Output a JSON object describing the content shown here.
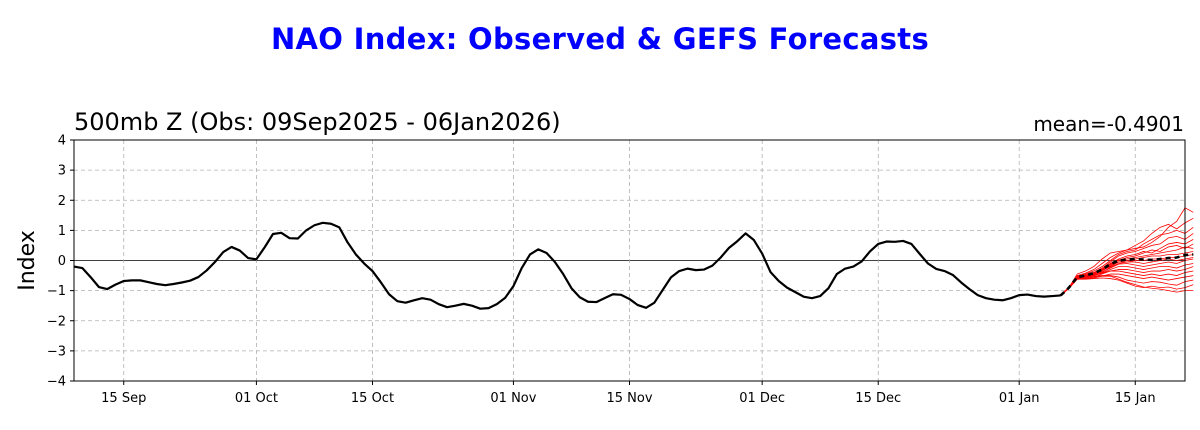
{
  "title": "NAO Index: Observed & GEFS Forecasts",
  "subtitle": "500mb Z (Obs: 09Sep2025 - 06Jan2026)",
  "mean_label": "mean=-0.4901",
  "colors": {
    "title": "#0000ff",
    "observed": "#000000",
    "ensemble": "#ff0000",
    "grid": "#b0b0b0"
  },
  "chart_data": {
    "type": "line",
    "ylabel": "Index",
    "ylim": [
      -4,
      4
    ],
    "yticks": [
      -4,
      -3,
      -2,
      -1,
      0,
      1,
      2,
      3,
      4
    ],
    "xlim": [
      "2025-09-09",
      "2026-01-21"
    ],
    "xticks": [
      {
        "date": "2025-09-15",
        "label": "15 Sep"
      },
      {
        "date": "2025-10-01",
        "label": "01 Oct"
      },
      {
        "date": "2025-10-15",
        "label": "15 Oct"
      },
      {
        "date": "2025-11-01",
        "label": "01 Nov"
      },
      {
        "date": "2025-11-15",
        "label": "15 Nov"
      },
      {
        "date": "2025-12-01",
        "label": "01 Dec"
      },
      {
        "date": "2025-12-15",
        "label": "15 Dec"
      },
      {
        "date": "2026-01-01",
        "label": "01 Jan"
      },
      {
        "date": "2026-01-15",
        "label": "15 Jan"
      }
    ],
    "grid": true,
    "zero_line": true,
    "observed": {
      "start": "2025-09-09",
      "values": [
        -0.2,
        -0.25,
        -0.55,
        -0.88,
        -0.95,
        -0.8,
        -0.68,
        -0.66,
        -0.66,
        -0.72,
        -0.78,
        -0.82,
        -0.78,
        -0.73,
        -0.67,
        -0.55,
        -0.33,
        -0.05,
        0.28,
        0.45,
        0.33,
        0.08,
        0.04,
        0.44,
        0.88,
        0.92,
        0.74,
        0.73,
        1.0,
        1.17,
        1.25,
        1.22,
        1.1,
        0.6,
        0.2,
        -0.1,
        -0.35,
        -0.72,
        -1.12,
        -1.35,
        -1.4,
        -1.32,
        -1.25,
        -1.3,
        -1.45,
        -1.55,
        -1.5,
        -1.44,
        -1.5,
        -1.6,
        -1.58,
        -1.45,
        -1.24,
        -0.85,
        -0.25,
        0.2,
        0.37,
        0.25,
        -0.05,
        -0.45,
        -0.92,
        -1.22,
        -1.37,
        -1.38,
        -1.25,
        -1.12,
        -1.14,
        -1.28,
        -1.48,
        -1.57,
        -1.4,
        -0.98,
        -0.56,
        -0.35,
        -0.27,
        -0.32,
        -0.3,
        -0.17,
        0.1,
        0.42,
        0.64,
        0.9,
        0.68,
        0.23,
        -0.38,
        -0.68,
        -0.9,
        -1.05,
        -1.2,
        -1.25,
        -1.18,
        -0.92,
        -0.45,
        -0.27,
        -0.2,
        -0.03,
        0.3,
        0.55,
        0.63,
        0.62,
        0.65,
        0.55,
        0.22,
        -0.1,
        -0.28,
        -0.35,
        -0.48,
        -0.73,
        -0.95,
        -1.15,
        -1.25,
        -1.3,
        -1.32,
        -1.25,
        -1.15,
        -1.13,
        -1.18,
        -1.2,
        -1.18,
        -1.16
      ]
    },
    "forecast": {
      "start": "2026-01-06",
      "mean": [
        -1.16,
        -0.9,
        -0.55,
        -0.5,
        -0.42,
        -0.3,
        -0.12,
        0.0,
        0.03,
        0.05,
        0.03,
        0.02,
        0.05,
        0.08,
        0.1,
        0.18,
        0.2
      ],
      "members": [
        [
          -1.16,
          -0.9,
          -0.45,
          -0.35,
          -0.2,
          0.05,
          0.25,
          0.3,
          0.35,
          0.4,
          0.45,
          0.6,
          0.8,
          1.1,
          1.3,
          1.75,
          1.6
        ],
        [
          -1.16,
          -0.9,
          -0.5,
          -0.42,
          -0.3,
          -0.1,
          0.1,
          0.25,
          0.35,
          0.5,
          0.65,
          0.9,
          1.1,
          1.2,
          1.05,
          1.25,
          1.4
        ],
        [
          -1.16,
          -0.88,
          -0.52,
          -0.45,
          -0.35,
          -0.2,
          0.0,
          0.2,
          0.3,
          0.35,
          0.55,
          0.7,
          0.85,
          0.9,
          1.0,
          0.9,
          1.1
        ],
        [
          -1.16,
          -0.9,
          -0.55,
          -0.48,
          -0.4,
          -0.25,
          -0.05,
          0.15,
          0.25,
          0.3,
          0.4,
          0.5,
          0.55,
          0.75,
          0.8,
          0.7,
          0.9
        ],
        [
          -1.16,
          -0.92,
          -0.58,
          -0.5,
          -0.4,
          -0.3,
          -0.1,
          0.05,
          0.15,
          0.2,
          0.3,
          0.25,
          0.4,
          0.55,
          0.6,
          0.55,
          0.7
        ],
        [
          -1.16,
          -0.9,
          -0.6,
          -0.55,
          -0.45,
          -0.3,
          -0.15,
          0.0,
          0.1,
          0.15,
          0.25,
          0.35,
          0.3,
          0.45,
          0.5,
          0.4,
          0.55
        ],
        [
          -1.16,
          -0.91,
          -0.56,
          -0.5,
          -0.42,
          -0.28,
          -0.12,
          0.02,
          0.05,
          0.1,
          0.15,
          0.2,
          0.25,
          0.3,
          0.35,
          0.45,
          0.4
        ],
        [
          -1.16,
          -0.9,
          -0.54,
          -0.48,
          -0.42,
          -0.32,
          -0.2,
          -0.05,
          0.0,
          0.05,
          0.1,
          0.15,
          0.15,
          0.2,
          0.2,
          0.25,
          0.3
        ],
        [
          -1.16,
          -0.92,
          -0.6,
          -0.55,
          -0.5,
          -0.4,
          -0.22,
          -0.1,
          -0.05,
          0.0,
          0.0,
          0.05,
          0.05,
          0.1,
          0.1,
          0.15,
          0.2
        ],
        [
          -1.16,
          -0.9,
          -0.57,
          -0.52,
          -0.47,
          -0.35,
          -0.18,
          -0.05,
          -0.05,
          -0.05,
          -0.1,
          -0.05,
          0.0,
          0.05,
          0.0,
          0.05,
          0.1
        ],
        [
          -1.16,
          -0.9,
          -0.55,
          -0.5,
          -0.45,
          -0.38,
          -0.25,
          -0.12,
          -0.1,
          -0.15,
          -0.2,
          -0.15,
          -0.1,
          -0.05,
          -0.1,
          0.0,
          0.05
        ],
        [
          -1.16,
          -0.91,
          -0.6,
          -0.58,
          -0.5,
          -0.42,
          -0.3,
          -0.2,
          -0.2,
          -0.25,
          -0.3,
          -0.25,
          -0.2,
          -0.2,
          -0.25,
          -0.15,
          -0.1
        ],
        [
          -1.16,
          -0.92,
          -0.62,
          -0.6,
          -0.55,
          -0.45,
          -0.35,
          -0.3,
          -0.3,
          -0.35,
          -0.4,
          -0.35,
          -0.35,
          -0.3,
          -0.35,
          -0.3,
          -0.2
        ],
        [
          -1.16,
          -0.9,
          -0.55,
          -0.52,
          -0.48,
          -0.42,
          -0.35,
          -0.35,
          -0.4,
          -0.45,
          -0.5,
          -0.45,
          -0.5,
          -0.45,
          -0.5,
          -0.4,
          -0.35
        ],
        [
          -1.16,
          -0.92,
          -0.6,
          -0.6,
          -0.58,
          -0.52,
          -0.45,
          -0.45,
          -0.5,
          -0.55,
          -0.6,
          -0.55,
          -0.6,
          -0.65,
          -0.6,
          -0.55,
          -0.5
        ],
        [
          -1.16,
          -0.9,
          -0.58,
          -0.55,
          -0.52,
          -0.5,
          -0.5,
          -0.55,
          -0.65,
          -0.7,
          -0.75,
          -0.7,
          -0.72,
          -0.78,
          -0.82,
          -0.7,
          -0.65
        ],
        [
          -1.16,
          -0.93,
          -0.62,
          -0.62,
          -0.6,
          -0.58,
          -0.6,
          -0.65,
          -0.75,
          -0.85,
          -0.9,
          -0.85,
          -0.9,
          -0.88,
          -0.95,
          -0.9,
          -0.8
        ],
        [
          -1.16,
          -0.92,
          -0.6,
          -0.58,
          -0.55,
          -0.52,
          -0.52,
          -0.62,
          -0.72,
          -0.8,
          -0.88,
          -0.92,
          -0.95,
          -1.0,
          -1.05,
          -1.0,
          -1.0
        ]
      ]
    }
  }
}
